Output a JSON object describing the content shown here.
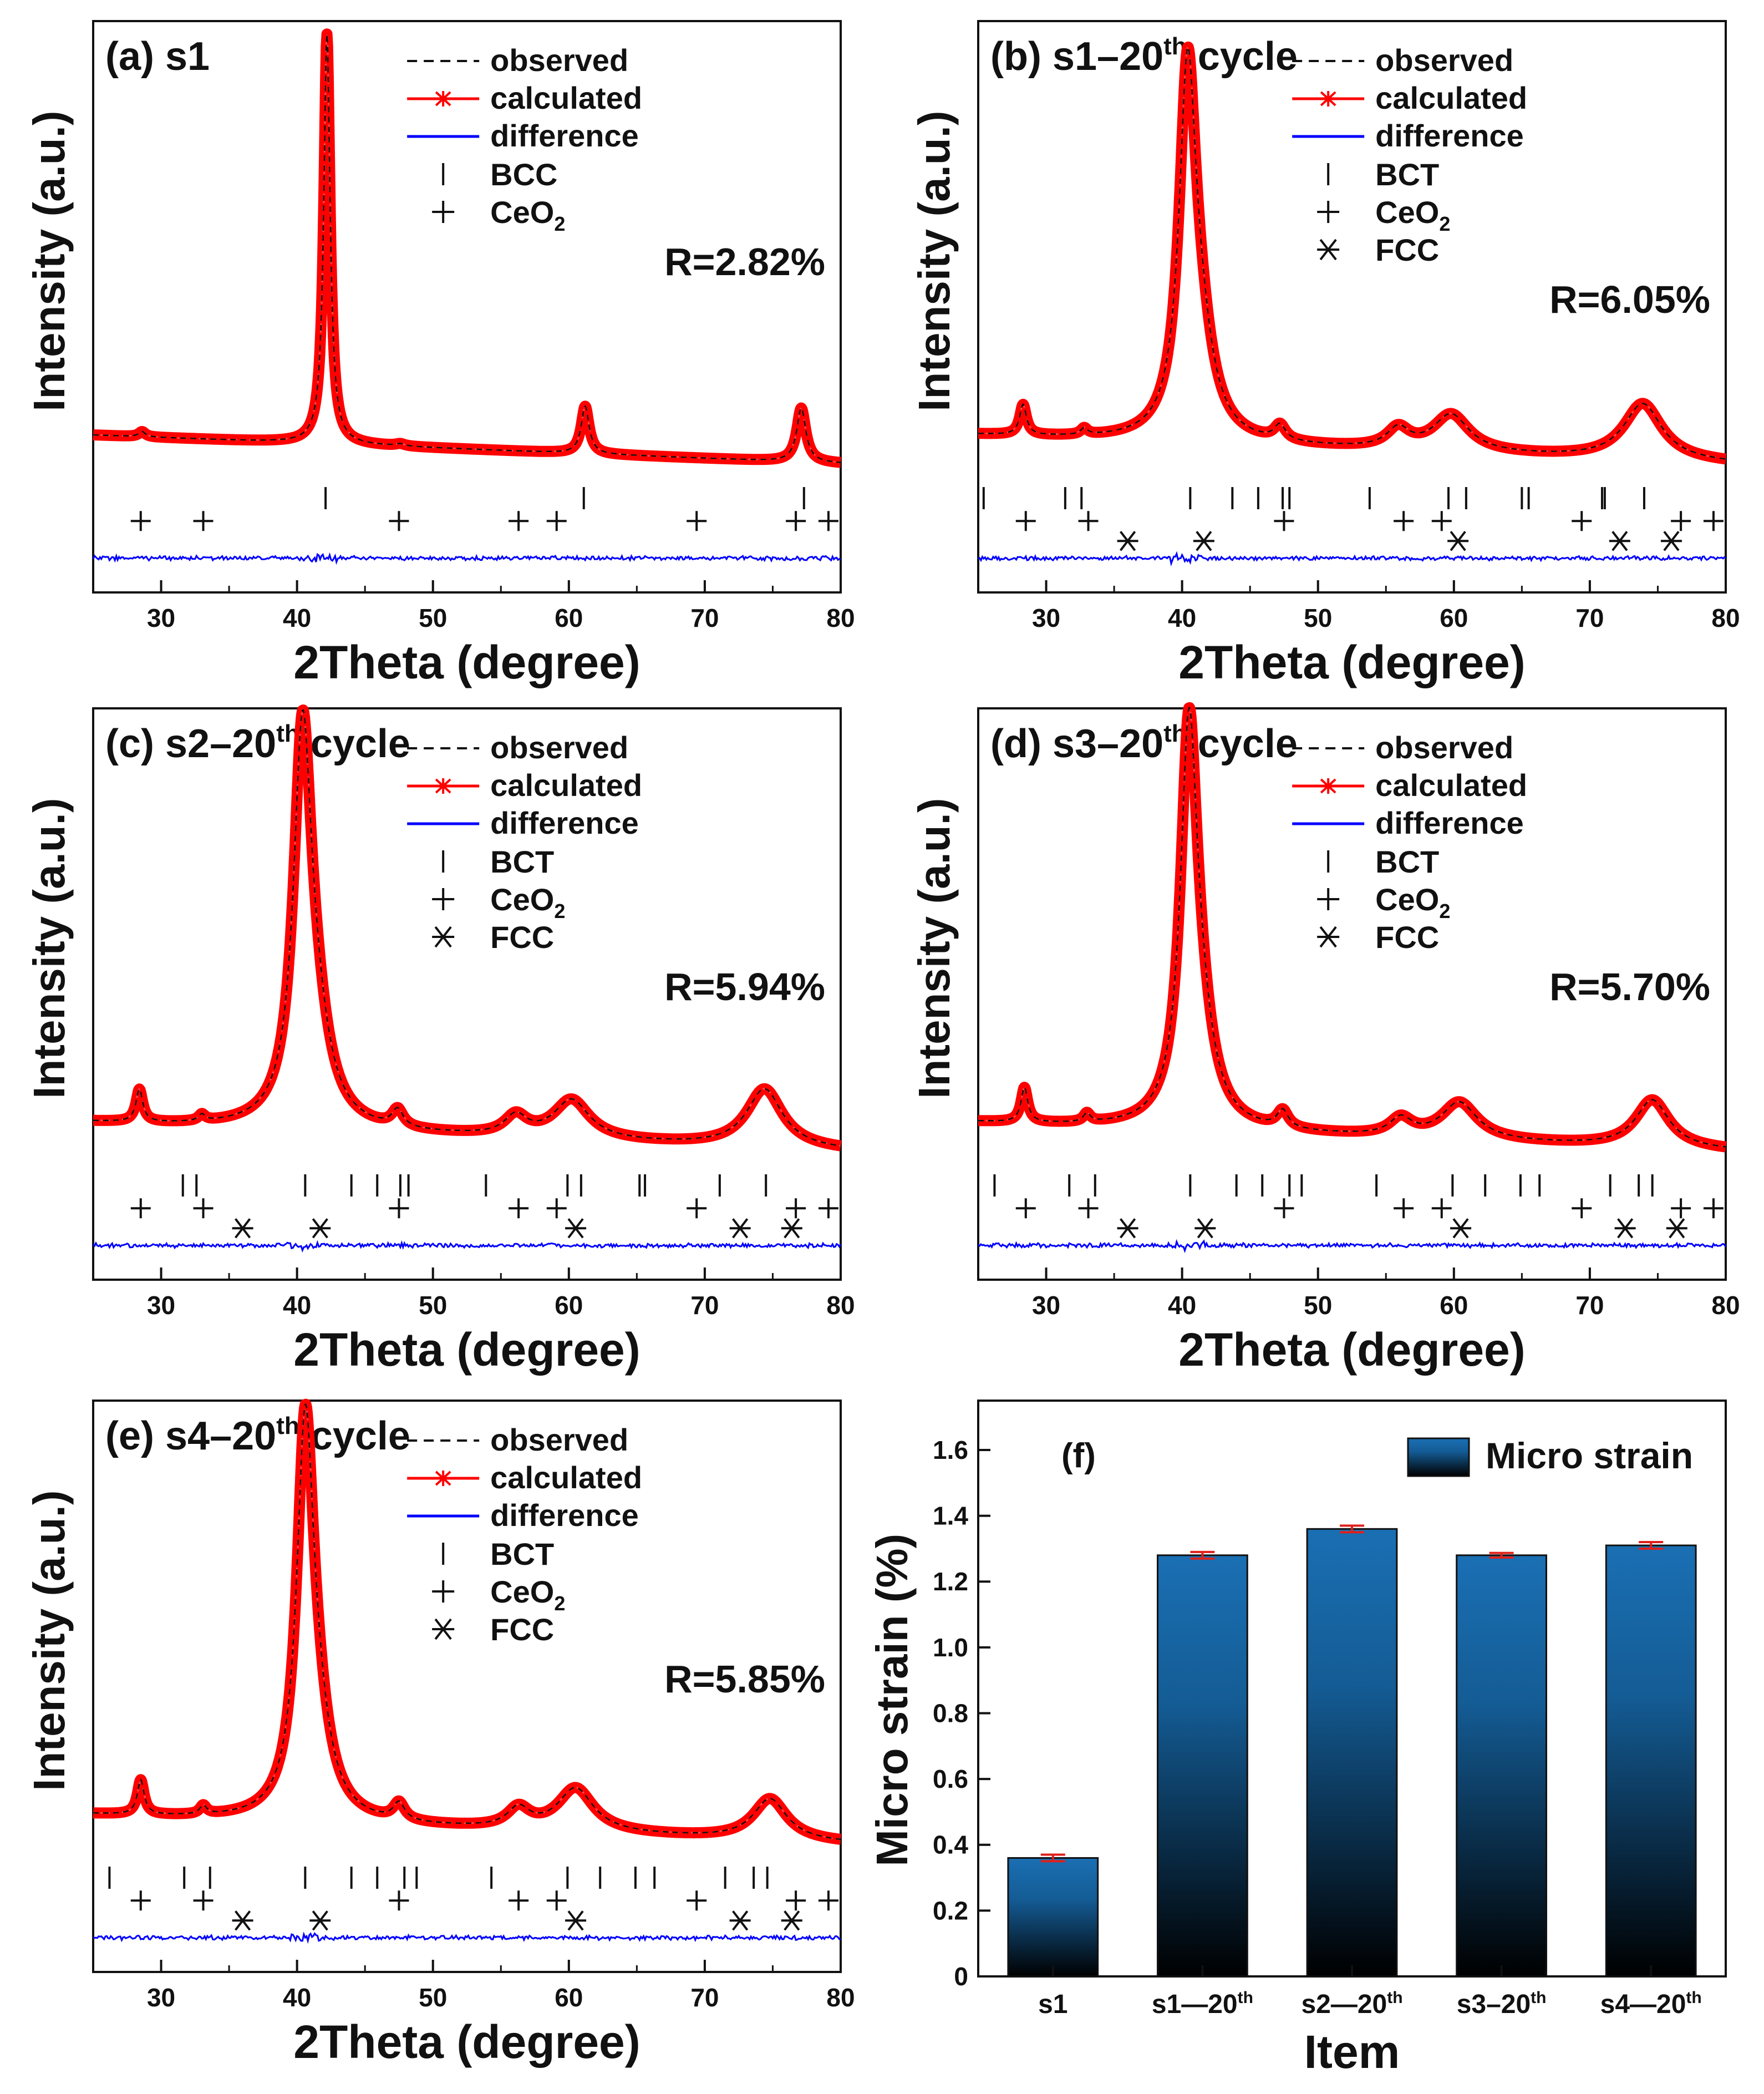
{
  "chart_data": [
    {
      "id": "a",
      "type": "line",
      "title_prefix": "(a) s1",
      "title_sup": "",
      "title_suffix": "",
      "xlabel": "2Theta (degree)",
      "ylabel": "Intensity (a.u.)",
      "xlim": [
        25,
        80
      ],
      "xticks": [
        "30",
        "40",
        "50",
        "60",
        "70",
        "80"
      ],
      "background": 1.0,
      "peaks": [
        [
          28.6,
          0.12,
          0.3
        ],
        [
          42.2,
          9.5,
          0.28
        ],
        [
          47.6,
          0.05,
          0.4
        ],
        [
          61.2,
          1.1,
          0.35
        ],
        [
          77.1,
          1.25,
          0.4
        ]
      ],
      "series": [
        {
          "name": "observed",
          "color": "#000000",
          "style": "dashed"
        },
        {
          "name": "calculated",
          "color": "#ff0000",
          "style": "line-asterisk"
        },
        {
          "name": "difference",
          "color": "#0000ff",
          "style": "line"
        }
      ],
      "phases": [
        {
          "name": "BCC",
          "marker": "bar",
          "positions": [
            42.1,
            61.1,
            77.3
          ]
        },
        {
          "name": "CeO",
          "sub": "2",
          "marker": "plus",
          "positions": [
            28.5,
            33.1,
            47.5,
            56.3,
            59.1,
            69.4,
            76.7,
            79.1
          ]
        }
      ],
      "r_factor": "R=2.82%"
    },
    {
      "id": "b",
      "type": "line",
      "title_prefix": "(b) s1–20",
      "title_sup": "th",
      "title_suffix": " cycle",
      "xlabel": "2Theta (degree)",
      "ylabel": "Intensity (a.u.)",
      "xlim": [
        25,
        80
      ],
      "xticks": [
        "30",
        "40",
        "50",
        "60",
        "70",
        "80"
      ],
      "background": 1.0,
      "peaks": [
        [
          28.3,
          0.7,
          0.3
        ],
        [
          32.8,
          0.15,
          0.3
        ],
        [
          40.4,
          8.0,
          0.75
        ],
        [
          41.3,
          1.8,
          1.2
        ],
        [
          47.2,
          0.35,
          0.5
        ],
        [
          55.9,
          0.45,
          1.0
        ],
        [
          59.8,
          0.85,
          1.6
        ],
        [
          73.9,
          1.3,
          1.7
        ]
      ],
      "series": [
        {
          "name": "observed",
          "color": "#000000",
          "style": "dashed"
        },
        {
          "name": "calculated",
          "color": "#ff0000",
          "style": "line-asterisk"
        },
        {
          "name": "difference",
          "color": "#0000ff",
          "style": "line"
        }
      ],
      "phases": [
        {
          "name": "BCT",
          "marker": "bar",
          "positions": [
            25.4,
            31.4,
            32.6,
            40.6,
            43.7,
            45.6,
            47.4,
            47.9,
            53.8,
            59.6,
            60.9,
            65.0,
            65.5,
            70.9,
            71.1,
            74.0
          ]
        },
        {
          "name": "CeO",
          "sub": "2",
          "marker": "plus",
          "positions": [
            28.5,
            33.1,
            47.5,
            56.3,
            59.1,
            69.4,
            76.7,
            79.1
          ]
        },
        {
          "name": "FCC",
          "marker": "asterisk",
          "positions": [
            36.0,
            41.6,
            60.3,
            72.2,
            76.0
          ]
        }
      ],
      "r_factor": "R=6.05%"
    },
    {
      "id": "c",
      "type": "line",
      "title_prefix": "(c) s2–20",
      "title_sup": "th",
      "title_suffix": " cycle",
      "xlabel": "2Theta (degree)",
      "ylabel": "Intensity (a.u.)",
      "xlim": [
        25,
        80
      ],
      "xticks": [
        "30",
        "40",
        "50",
        "60",
        "70",
        "80"
      ],
      "background": 1.0,
      "peaks": [
        [
          28.4,
          0.75,
          0.3
        ],
        [
          33.0,
          0.15,
          0.3
        ],
        [
          40.4,
          8.5,
          0.8
        ],
        [
          41.3,
          1.8,
          1.3
        ],
        [
          47.4,
          0.4,
          0.5
        ],
        [
          56.1,
          0.45,
          1.0
        ],
        [
          60.2,
          0.9,
          1.6
        ],
        [
          74.4,
          1.35,
          1.6
        ]
      ],
      "series": [
        {
          "name": "observed",
          "color": "#000000",
          "style": "dashed"
        },
        {
          "name": "calculated",
          "color": "#ff0000",
          "style": "line-asterisk"
        },
        {
          "name": "difference",
          "color": "#0000ff",
          "style": "line"
        }
      ],
      "phases": [
        {
          "name": "BCT",
          "marker": "bar",
          "positions": [
            31.6,
            32.6,
            40.6,
            44.0,
            45.9,
            47.6,
            48.2,
            53.9,
            59.9,
            60.9,
            65.2,
            65.6,
            71.1,
            74.5
          ]
        },
        {
          "name": "CeO",
          "sub": "2",
          "marker": "plus",
          "positions": [
            28.5,
            33.1,
            47.5,
            56.3,
            59.1,
            69.4,
            76.7,
            79.1
          ]
        },
        {
          "name": "FCC",
          "marker": "asterisk",
          "positions": [
            36.0,
            41.7,
            60.5,
            72.6,
            76.4
          ]
        }
      ],
      "r_factor": "R=5.94%"
    },
    {
      "id": "d",
      "type": "line",
      "title_prefix": "(d) s3–20",
      "title_sup": "th",
      "title_suffix": " cycle",
      "xlabel": "2Theta (degree)",
      "ylabel": "Intensity (a.u.)",
      "xlim": [
        25,
        80
      ],
      "xticks": [
        "30",
        "40",
        "50",
        "60",
        "70",
        "80"
      ],
      "background": 1.0,
      "peaks": [
        [
          28.4,
          0.8,
          0.3
        ],
        [
          33.0,
          0.2,
          0.3
        ],
        [
          40.5,
          8.6,
          0.75
        ],
        [
          41.3,
          1.7,
          1.2
        ],
        [
          47.4,
          0.4,
          0.5
        ],
        [
          56.1,
          0.4,
          1.0
        ],
        [
          60.4,
          0.85,
          1.6
        ],
        [
          74.6,
          1.1,
          1.5
        ]
      ],
      "series": [
        {
          "name": "observed",
          "color": "#000000",
          "style": "dashed"
        },
        {
          "name": "calculated",
          "color": "#ff0000",
          "style": "line-asterisk"
        },
        {
          "name": "difference",
          "color": "#0000ff",
          "style": "line"
        }
      ],
      "phases": [
        {
          "name": "BCT",
          "marker": "bar",
          "positions": [
            26.2,
            31.7,
            33.6,
            40.6,
            44.0,
            45.9,
            47.9,
            48.8,
            54.3,
            59.9,
            62.3,
            64.9,
            66.3,
            71.5,
            73.6,
            74.6
          ]
        },
        {
          "name": "CeO",
          "sub": "2",
          "marker": "plus",
          "positions": [
            28.5,
            33.1,
            47.5,
            56.3,
            59.1,
            69.4,
            76.7,
            79.1
          ]
        },
        {
          "name": "FCC",
          "marker": "asterisk",
          "positions": [
            36.0,
            41.7,
            60.5,
            72.6,
            76.4
          ]
        }
      ],
      "r_factor": "R=5.70%"
    },
    {
      "id": "e",
      "type": "line",
      "title_prefix": "(e) s4–20",
      "title_sup": "th",
      "title_suffix": " cycle",
      "xlabel": "2Theta (degree)",
      "ylabel": "Intensity (a.u.)",
      "xlim": [
        25,
        80
      ],
      "xticks": [
        "30",
        "40",
        "50",
        "60",
        "70",
        "80"
      ],
      "background": 1.0,
      "peaks": [
        [
          28.5,
          0.8,
          0.3
        ],
        [
          33.1,
          0.2,
          0.3
        ],
        [
          40.6,
          8.5,
          0.75
        ],
        [
          41.4,
          1.7,
          1.2
        ],
        [
          47.5,
          0.4,
          0.5
        ],
        [
          56.3,
          0.45,
          1.0
        ],
        [
          60.5,
          1.0,
          1.6
        ],
        [
          74.8,
          0.95,
          1.5
        ]
      ],
      "series": [
        {
          "name": "observed",
          "color": "#000000",
          "style": "dashed"
        },
        {
          "name": "calculated",
          "color": "#ff0000",
          "style": "line-asterisk"
        },
        {
          "name": "difference",
          "color": "#0000ff",
          "style": "line"
        }
      ],
      "phases": [
        {
          "name": "BCT",
          "marker": "bar",
          "positions": [
            26.2,
            31.7,
            33.6,
            40.6,
            44.0,
            45.9,
            47.9,
            48.8,
            54.3,
            59.9,
            62.3,
            64.9,
            66.3,
            71.5,
            73.6,
            74.6
          ]
        },
        {
          "name": "CeO",
          "sub": "2",
          "marker": "plus",
          "positions": [
            28.5,
            33.1,
            47.5,
            56.3,
            59.1,
            69.4,
            76.7,
            79.1
          ]
        },
        {
          "name": "FCC",
          "marker": "asterisk",
          "positions": [
            36.0,
            41.7,
            60.5,
            72.6,
            76.4
          ]
        }
      ],
      "r_factor": "R=5.85%"
    },
    {
      "id": "f",
      "type": "bar",
      "title": "(f)",
      "xlabel": "Item",
      "ylabel": "Micro strain (%)",
      "ylim": [
        0,
        1.75
      ],
      "yticks": [
        "0",
        "0.2",
        "0.4",
        "0.6",
        "0.8",
        "1.0",
        "1.2",
        "1.4",
        "1.6"
      ],
      "categories": [
        {
          "base": "s1",
          "sup": ""
        },
        {
          "base": "s1—20",
          "sup": "th"
        },
        {
          "base": "s2—20",
          "sup": "th"
        },
        {
          "base": "s3–20",
          "sup": "th"
        },
        {
          "base": "s4—20",
          "sup": "th"
        }
      ],
      "values": [
        0.36,
        1.28,
        1.36,
        1.28,
        1.31
      ],
      "errors": [
        0.01,
        0.01,
        0.01,
        0.007,
        0.01
      ],
      "legend": "Micro strain",
      "bar_color_top": "#1a6fb3",
      "bar_color_bottom": "#000000",
      "error_color": "#e0201a"
    }
  ]
}
